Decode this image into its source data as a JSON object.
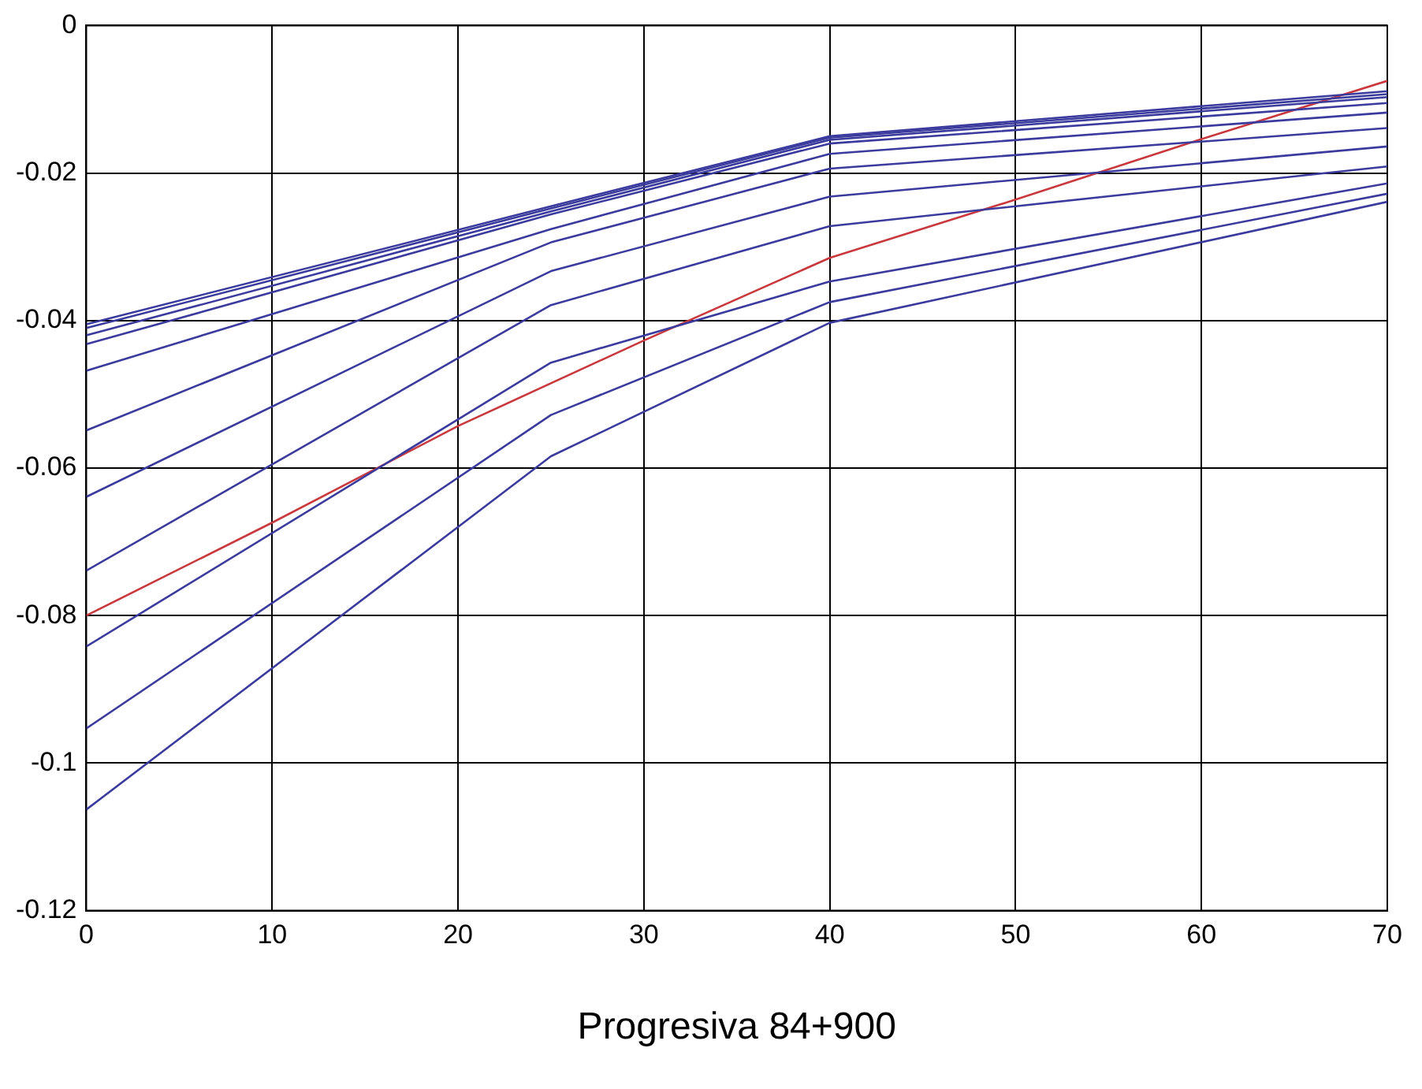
{
  "chart_data": {
    "type": "line",
    "xlabel": "Progresiva 84+900",
    "xlim": [
      0,
      70
    ],
    "xticks": [
      0,
      10,
      20,
      30,
      40,
      50,
      60,
      70
    ],
    "ylim": [
      -0.12,
      0
    ],
    "yticks": [
      -0.12,
      -0.1,
      -0.08,
      -0.06,
      -0.04,
      -0.02,
      0
    ],
    "grid": true,
    "legend": false,
    "marker": "none",
    "line_style": "solid",
    "series": [
      {
        "color": "#3b3b9e",
        "x": [
          0,
          25,
          40,
          70
        ],
        "values": [
          -0.0405,
          -0.0245,
          -0.015,
          -0.0089
        ]
      },
      {
        "color": "#3b3b9e",
        "x": [
          0,
          25,
          40,
          70
        ],
        "values": [
          -0.041,
          -0.0248,
          -0.0152,
          -0.0093
        ]
      },
      {
        "color": "#3b3b9e",
        "x": [
          0,
          25,
          40,
          70
        ],
        "values": [
          -0.042,
          -0.0252,
          -0.0155,
          -0.0097
        ]
      },
      {
        "color": "#3b3b9e",
        "x": [
          0,
          25,
          40,
          70
        ],
        "values": [
          -0.0432,
          -0.0256,
          -0.016,
          -0.0105
        ]
      },
      {
        "color": "#3b3b9e",
        "x": [
          0,
          25,
          40,
          70
        ],
        "values": [
          -0.0468,
          -0.0276,
          -0.0174,
          -0.0118
        ]
      },
      {
        "color": "#3b3b9e",
        "x": [
          0,
          25,
          40,
          70
        ],
        "values": [
          -0.0549,
          -0.0294,
          -0.0194,
          -0.0139
        ]
      },
      {
        "color": "#3b3b9e",
        "x": [
          0,
          25,
          40,
          70
        ],
        "values": [
          -0.0639,
          -0.0333,
          -0.0232,
          -0.0164
        ]
      },
      {
        "color": "#3b3b9e",
        "x": [
          0,
          25,
          40,
          70
        ],
        "values": [
          -0.0739,
          -0.0379,
          -0.0272,
          -0.0191
        ]
      },
      {
        "color": "#3b3b9e",
        "x": [
          0,
          25,
          40,
          70
        ],
        "values": [
          -0.0842,
          -0.0457,
          -0.0347,
          -0.0214
        ]
      },
      {
        "color": "#3b3b9e",
        "x": [
          0,
          25,
          40,
          70
        ],
        "values": [
          -0.0953,
          -0.0528,
          -0.0375,
          -0.0228
        ]
      },
      {
        "color": "#3b3b9e",
        "x": [
          0,
          25,
          40,
          70
        ],
        "values": [
          -0.1063,
          -0.0584,
          -0.0403,
          -0.0239
        ]
      },
      {
        "color": "#c8383c",
        "x": [
          0,
          10,
          20,
          30,
          40,
          50,
          60,
          70
        ],
        "values": [
          -0.08,
          -0.0674,
          -0.0543,
          -0.0427,
          -0.0315,
          -0.0236,
          -0.0154,
          -0.0075
        ]
      }
    ]
  }
}
